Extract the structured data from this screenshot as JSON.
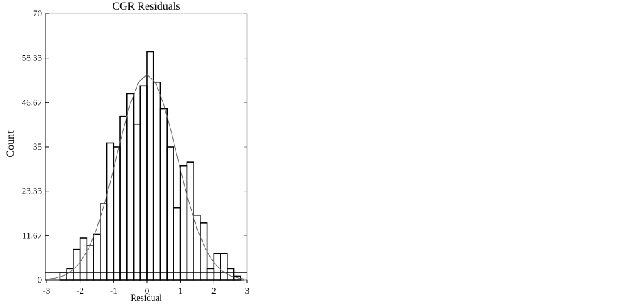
{
  "chart_data": {
    "type": "histogram",
    "title": "CGR Residuals",
    "x_label": "Residual",
    "y_label": "Count",
    "bins": [
      -2.6,
      -2.4,
      -2.2,
      -2.0,
      -1.8,
      -1.6,
      -1.4,
      -1.2,
      -1.0,
      -0.8,
      -0.6,
      -0.4,
      -0.2,
      0,
      0.2,
      0.4,
      0.6,
      0.8,
      1.0,
      1.2,
      1.4,
      1.6,
      1.8,
      2.0,
      2.2,
      2.4,
      2.6,
      2.8
    ],
    "values": [
      2,
      3,
      8,
      11,
      9,
      12,
      20,
      36,
      35,
      43,
      49,
      41,
      51,
      60,
      52,
      45,
      35,
      19,
      30,
      31,
      17,
      15,
      3,
      7,
      7,
      3,
      1
    ],
    "color": "#000000",
    "curve": {
      "color": "#666666",
      "x": [
        -3,
        -2.75,
        -2.5,
        -2.25,
        -2,
        -1.75,
        -1.5,
        -1.25,
        -1,
        -0.75,
        -0.5,
        -0.25,
        0,
        0.25,
        0.5,
        0.75,
        1,
        1.25,
        1.5,
        1.75,
        2,
        2.25,
        2.5,
        2.75,
        3
      ],
      "y": [
        0.2,
        0.5,
        1.1,
        2.4,
        4.6,
        8.2,
        13.5,
        20.6,
        29.1,
        38.2,
        46.3,
        52.0,
        54,
        52.0,
        46.3,
        38.2,
        29.1,
        20.6,
        13.5,
        8.2,
        4.6,
        2.4,
        1.1,
        0.5,
        0.2
      ]
    },
    "xlim": [
      -3.04,
      3
    ],
    "xticks": [
      -3,
      -2,
      -1,
      0,
      1,
      2,
      3
    ],
    "ylim": [
      0,
      70
    ],
    "yticks": [
      0,
      11.67,
      23.33,
      35,
      46.67,
      58.33,
      70
    ]
  }
}
